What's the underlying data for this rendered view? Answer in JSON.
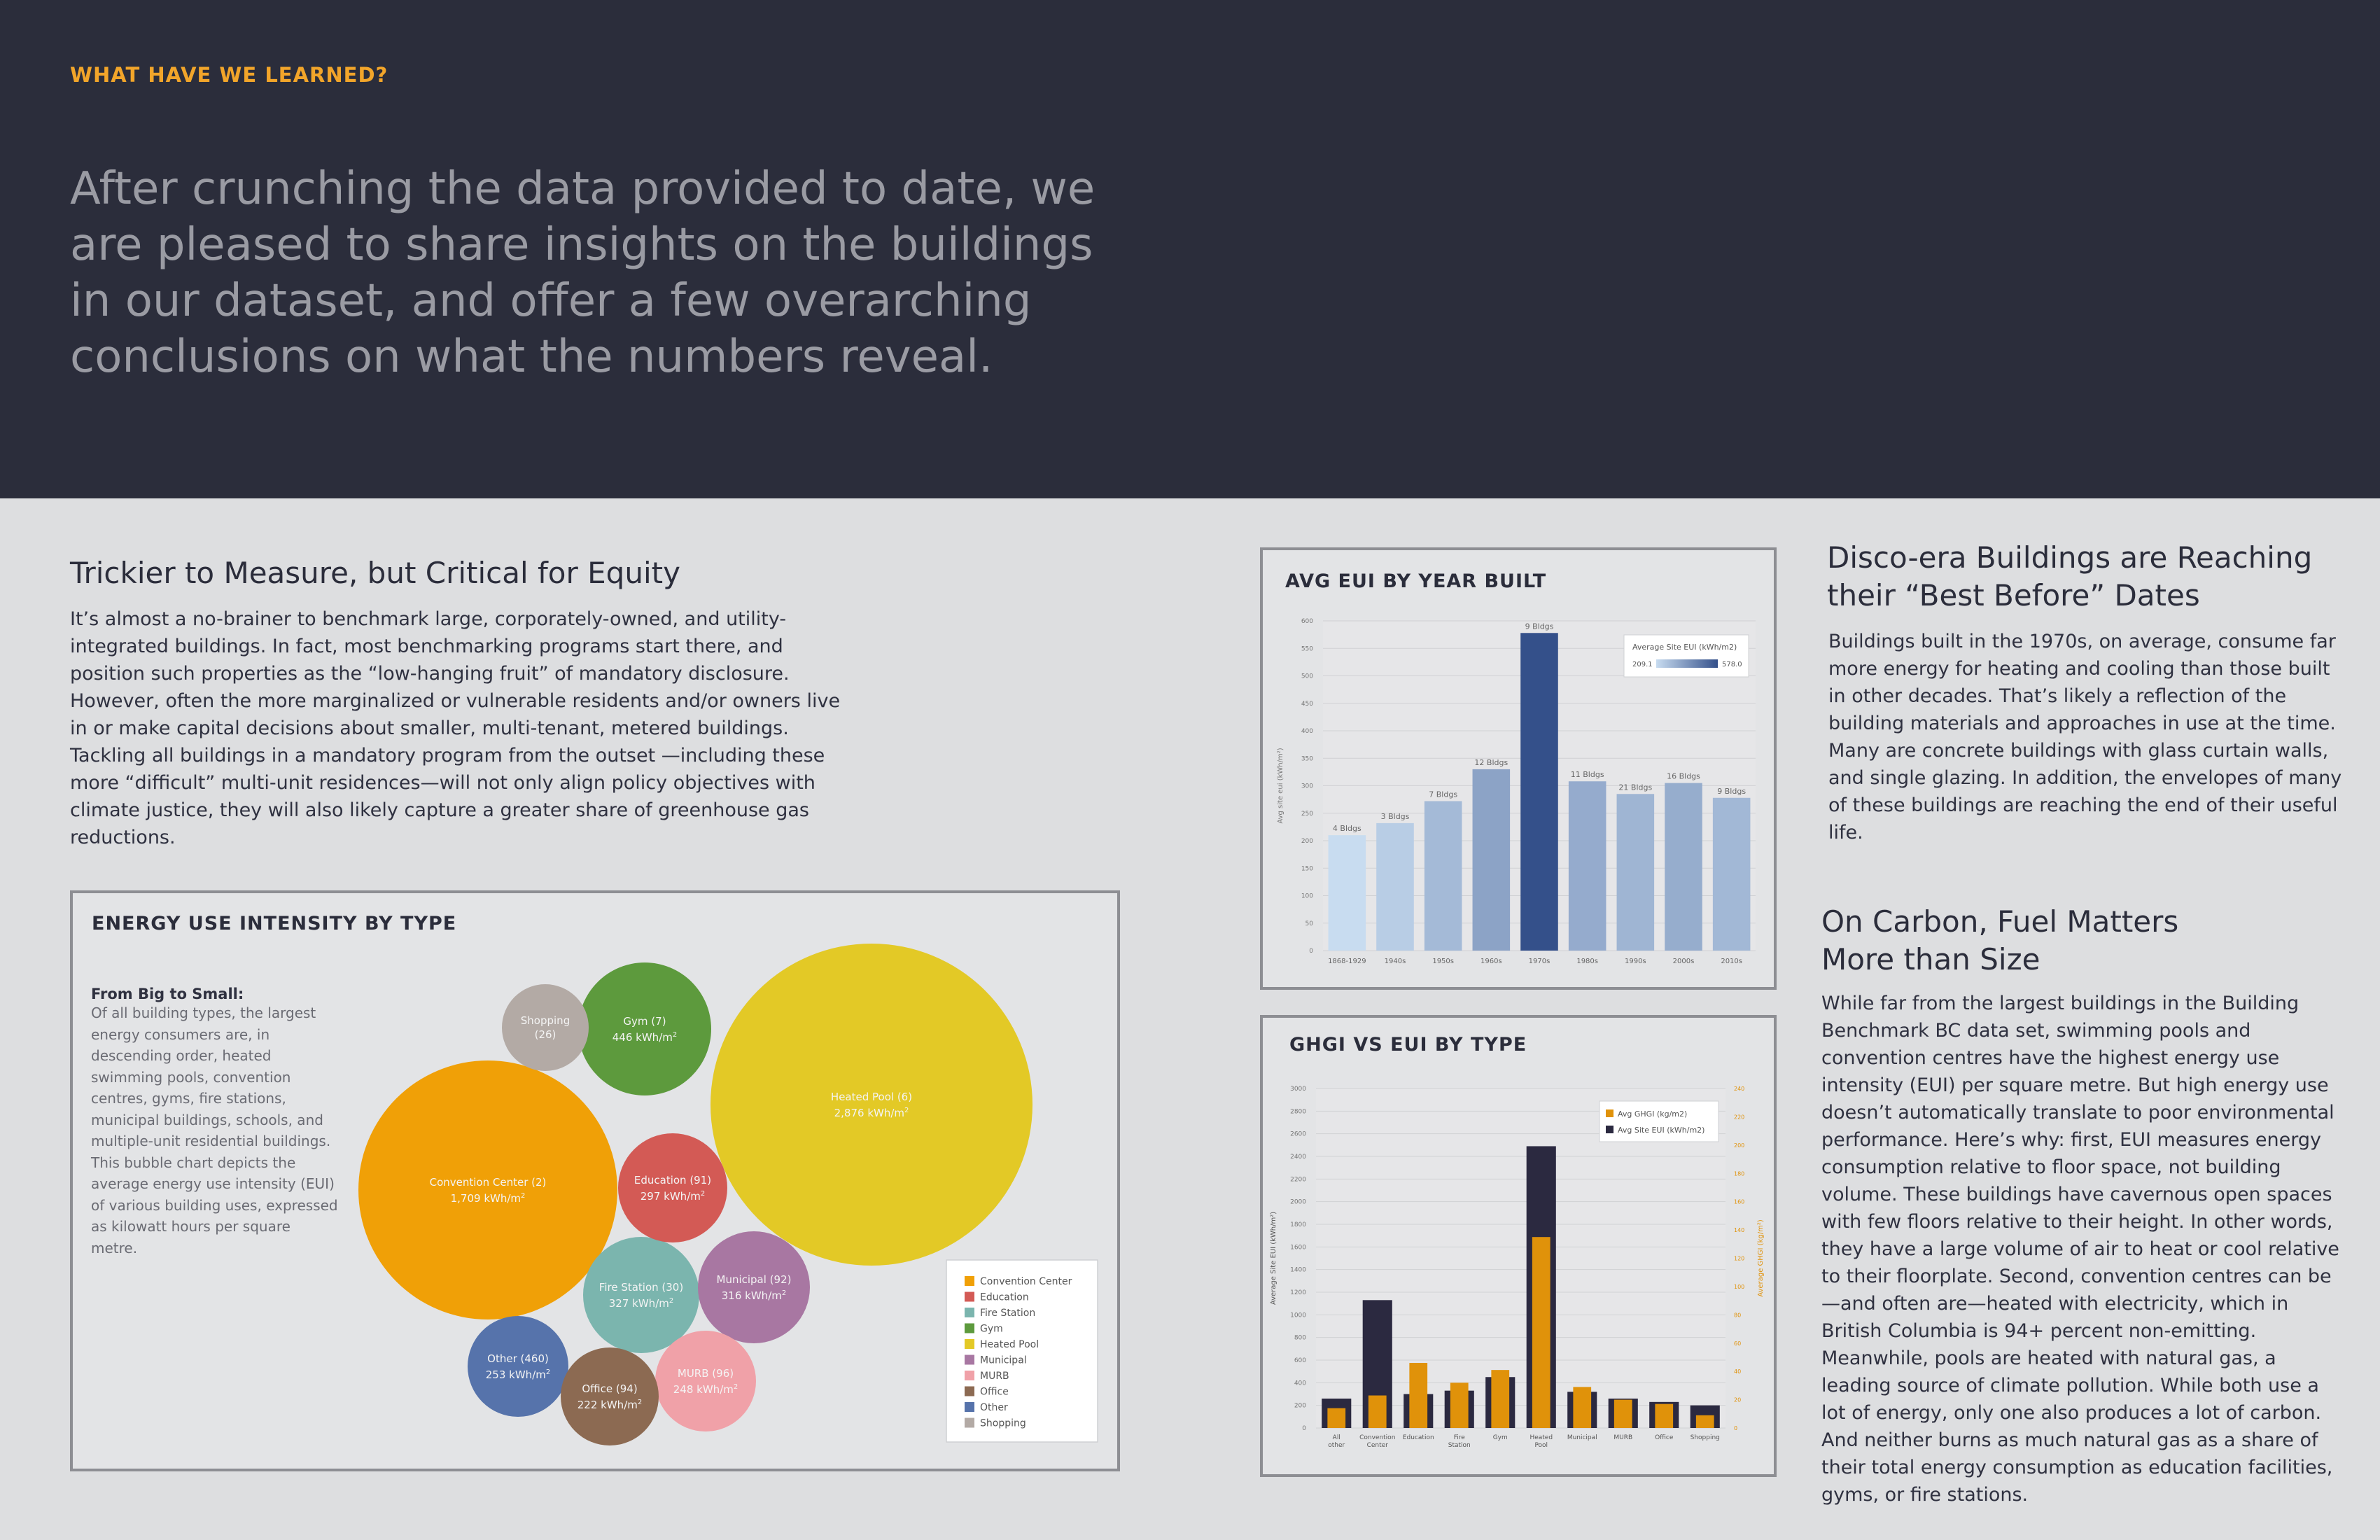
{
  "hero": {
    "kicker": "WHAT HAVE WE LEARNED?",
    "lead": "After crunching the data provided to date, we are pleased to share insights on the buildings in our dataset, and offer a few overarching conclusions on what the numbers reveal."
  },
  "equity": {
    "title": "Trickier to Measure, but Critical for Equity",
    "body": "It’s almost a no-brainer to benchmark large, corporately-owned, and utility-integrated buildings. In fact, most benchmarking programs start there, and position such properties as the “low-hanging fruit” of mandatory disclosure. However, often the more marginalized or vulnerable residents and/or owners live in or make capital decisions about smaller, multi-tenant, metered buildings. Tackling all buildings in a mandatory program from the outset —including these more “difficult” multi-unit residences—will not only align policy objectives with climate justice, they will also likely capture a greater share of greenhouse gas reductions."
  },
  "disco": {
    "title": "Disco-era Buildings are Reaching their “Best Before” Dates",
    "body": "Buildings built in the 1970s, on average, consume far more energy for heating and cooling than those built in other decades. That’s likely a reflection of the building materials and approaches in use at the time. Many are concrete buildings with glass curtain walls, and single glazing. In addition, the envelopes of many of these buildings are reaching the end of their useful life."
  },
  "carbon": {
    "title": "On Carbon, Fuel Matters More than Size",
    "body": "While far from the largest buildings in the Building Benchmark BC data set, swimming pools and convention centres have the highest energy use intensity (EUI) per square metre. But high energy use doesn’t automatically translate to poor environmental performance. Here’s why: first, EUI measures energy consumption relative to floor space, not building volume. These buildings have cavernous open spaces with few floors relative to their height. In other words, they have a large volume of air to heat or cool relative to their floorplate. Second, convention centres can be—and often are—heated with electricity, which in British Columbia is 94+ percent non-emitting. Meanwhile, pools are heated with natural gas, a leading source of climate pollution. While both use a lot of energy, only one also produces a lot of carbon. And neither burns as much natural gas as a share of their total energy consumption as education facilities, gyms, or fire stations."
  },
  "bubble_panel": {
    "title": "ENERGY USE INTENSITY BY TYPE",
    "side_heading": "From Big to Small:",
    "side_text": "Of all building types, the largest energy consumers are, in descending order, heated swimming pools, convention centres, gyms, fire stations, municipal buildings, schools, and multiple-unit residential buildings. This bubble chart depicts the average energy use intensity (EUI) of various building uses, expressed as kilowatt hours per square metre."
  },
  "year_panel": {
    "title": "AVG EUI BY YEAR BUILT"
  },
  "ghgi_panel": {
    "title": "GHGI VS EUI BY TYPE"
  },
  "chart_data": [
    {
      "type": "bubble",
      "title": "ENERGY USE INTENSITY BY TYPE",
      "unit": "kWh/m²",
      "items": [
        {
          "name": "Heated Pool",
          "count": "(6)",
          "value": 2876,
          "value_label": "2,876 kWh/m",
          "color": "#e3c926"
        },
        {
          "name": "Convention Center",
          "count": "(2)",
          "value": 1709,
          "value_label": "1,709 kWh/m",
          "color": "#f0a007"
        },
        {
          "name": "Gym",
          "count": "(7)",
          "value": 446,
          "value_label": "446 kWh/m",
          "color": "#5d9a3d"
        },
        {
          "name": "Fire Station",
          "count": "(30)",
          "value": 327,
          "value_label": "327 kWh/m",
          "color": "#7bb5ae"
        },
        {
          "name": "Municipal",
          "count": "(92)",
          "value": 316,
          "value_label": "316 kWh/m",
          "color": "#a877a2"
        },
        {
          "name": "Education",
          "count": "(91)",
          "value": 297,
          "value_label": "297 kWh/m",
          "color": "#d35a55"
        },
        {
          "name": "Other",
          "count": "(460)",
          "value": 253,
          "value_label": "253 kWh/m",
          "color": "#5673ab"
        },
        {
          "name": "MURB",
          "count": "(96)",
          "value": 248,
          "value_label": "248 kWh/m",
          "color": "#f0a1a8"
        },
        {
          "name": "Office",
          "count": "(94)",
          "value": 222,
          "value_label": "222 kWh/m",
          "color": "#8c6a52"
        },
        {
          "name": "Shopping",
          "count": "(26)",
          "value": null,
          "value_label": "",
          "color": "#b3aaa5"
        }
      ],
      "legend": [
        "Convention Center",
        "Education",
        "Fire Station",
        "Gym",
        "Heated Pool",
        "Municipal",
        "MURB",
        "Office",
        "Other",
        "Shopping"
      ],
      "legend_colors": [
        "#f0a007",
        "#d35a55",
        "#7bb5ae",
        "#5d9a3d",
        "#e3c926",
        "#a877a2",
        "#f0a1a8",
        "#8c6a52",
        "#5673ab",
        "#b3aaa5"
      ]
    },
    {
      "type": "bar",
      "title": "AVG EUI BY YEAR BUILT",
      "ylabel": "Avg site eui (kWh/m²)",
      "ylim": [
        0,
        600
      ],
      "yticks": [
        "0",
        "50",
        "100",
        "150",
        "200",
        "250",
        "300",
        "350",
        "400",
        "450",
        "500",
        "550",
        "600"
      ],
      "categories": [
        "1868-1929",
        "1940s",
        "1950s",
        "1960s",
        "1970s",
        "1980s",
        "1990s",
        "2000s",
        "2010s"
      ],
      "values": [
        210,
        232,
        272,
        330,
        578,
        308,
        285,
        305,
        278
      ],
      "bar_labels": [
        "4 Bldgs",
        "3 Bldgs",
        "7 Bldgs",
        "12 Bldgs",
        "9 Bldgs",
        "11 Bldgs",
        "21 Bldgs",
        "16 Bldgs",
        "9 Bldgs"
      ],
      "legend_title": "Average Site EUI (kWh/m2)",
      "legend_min": "209.1",
      "legend_max": "578.0",
      "color_min": "#c8dcf0",
      "color_max": "#34508a"
    },
    {
      "type": "bar",
      "title": "GHGI VS EUI BY TYPE",
      "ylabel": "Average Site EUI (kWh/m²)",
      "y2label": "Average GHGI (kg/m²)",
      "ylim": [
        0,
        3000
      ],
      "yticks": [
        "0",
        "200",
        "400",
        "600",
        "800",
        "1000",
        "1200",
        "1400",
        "1600",
        "1800",
        "2000",
        "2200",
        "2400",
        "2600",
        "2800",
        "3000"
      ],
      "y2lim": [
        0,
        240
      ],
      "y2ticks": [
        "0",
        "20",
        "40",
        "60",
        "80",
        "100",
        "120",
        "140",
        "160",
        "180",
        "200",
        "220",
        "240"
      ],
      "categories": [
        "All other",
        "Convention Center",
        "Education",
        "Fire Station",
        "Gym",
        "Heated Pool",
        "Municipal",
        "MURB",
        "Office",
        "Shopping"
      ],
      "series": [
        {
          "name": "Avg Site EUI (kWh/m2)",
          "color": "#2b2940",
          "values": [
            260,
            1130,
            300,
            330,
            450,
            2490,
            320,
            260,
            230,
            200
          ]
        },
        {
          "name": "Avg GHGI (kg/m2)",
          "color": "#e0920a",
          "values": [
            14,
            23,
            46,
            32,
            41,
            135,
            29,
            20,
            17,
            9
          ]
        }
      ]
    }
  ]
}
